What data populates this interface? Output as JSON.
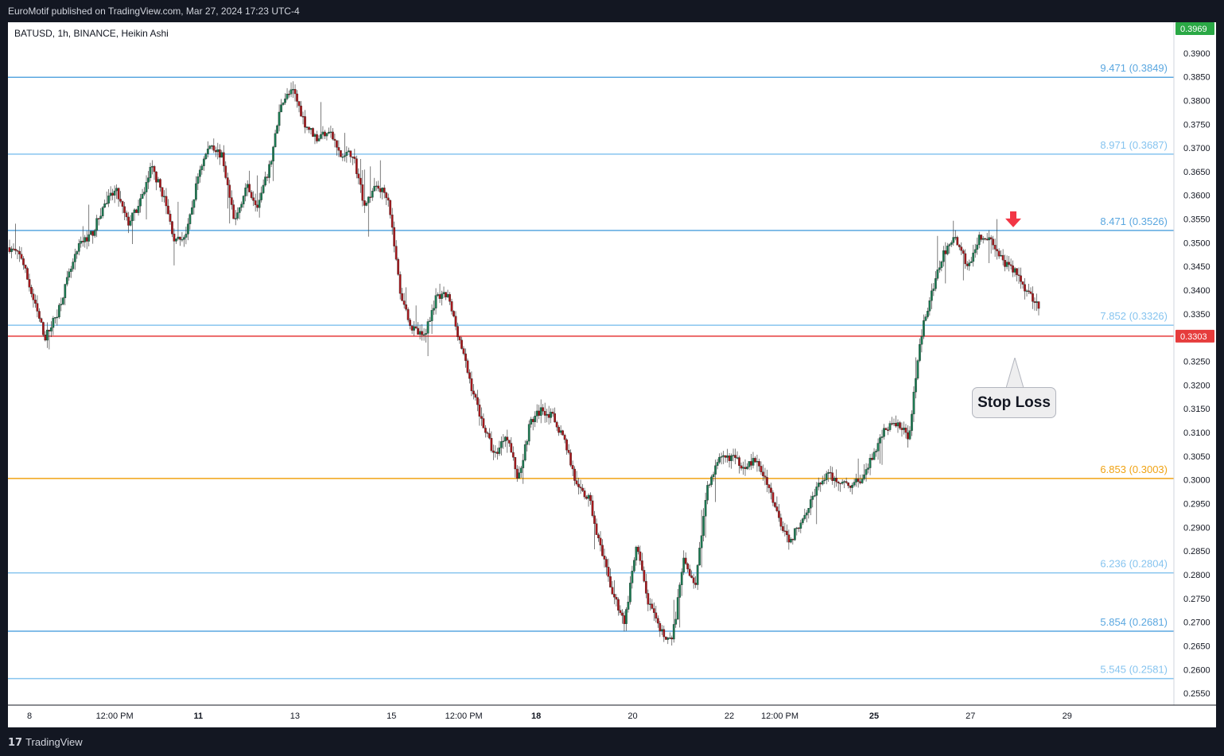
{
  "header": {
    "published": "EuroMotif published on TradingView.com, Mar 27, 2024 17:23 UTC-4"
  },
  "footer": {
    "brand": "TradingView",
    "logo_icon": "tradingview-logo-icon"
  },
  "colors": {
    "up": "#26a69a",
    "down": "#ef5350",
    "candle_up_body": "#1b7a52",
    "candle_down_body": "#a6171b",
    "fib_blue": "#5aa7e0",
    "fib_orange": "#f0a314",
    "stop": "#e63c3c",
    "last_price_bg": "#2aa845",
    "arrow": "#f23645"
  },
  "chart_data": {
    "type": "candlestick",
    "symbol_label": "BATUSD, 1h, BINANCE, Heikin Ashi",
    "ylim": [
      0.2525,
      0.3965
    ],
    "y_ticks": [
      "0.2550",
      "0.2600",
      "0.2650",
      "0.2700",
      "0.2750",
      "0.2800",
      "0.2850",
      "0.2900",
      "0.2950",
      "0.3000",
      "0.3050",
      "0.3100",
      "0.3150",
      "0.3200",
      "0.3250",
      "0.3300",
      "0.3350",
      "0.3400",
      "0.3450",
      "0.3500",
      "0.3550",
      "0.3600",
      "0.3650",
      "0.3700",
      "0.3750",
      "0.3800",
      "0.3850",
      "0.3900"
    ],
    "x_ticks": [
      {
        "label": "8",
        "bold": false,
        "t": 0.0
      },
      {
        "label": "12:00 PM",
        "bold": false,
        "t": 0.079
      },
      {
        "label": "11",
        "bold": true,
        "t": 0.1566
      },
      {
        "label": "13",
        "bold": false,
        "t": 0.2462
      },
      {
        "label": "15",
        "bold": false,
        "t": 0.3357
      },
      {
        "label": "12:00 PM",
        "bold": false,
        "t": 0.4028
      },
      {
        "label": "18",
        "bold": true,
        "t": 0.4699
      },
      {
        "label": "20",
        "bold": false,
        "t": 0.5594
      },
      {
        "label": "22",
        "bold": false,
        "t": 0.649
      },
      {
        "label": "12:00 PM",
        "bold": false,
        "t": 0.6958
      },
      {
        "label": "25",
        "bold": true,
        "t": 0.7832
      },
      {
        "label": "27",
        "bold": false,
        "t": 0.8726
      },
      {
        "label": "29",
        "bold": false,
        "t": 0.9622
      }
    ],
    "fib_levels": [
      {
        "label": "9.471 (0.3849)",
        "value": 0.3849,
        "color": "#5aa7e0"
      },
      {
        "label": "8.971 (0.3687)",
        "value": 0.3687,
        "color": "#86c4ef"
      },
      {
        "label": "8.471 (0.3526)",
        "value": 0.3526,
        "color": "#5aa7e0"
      },
      {
        "label": "7.852 (0.3326)",
        "value": 0.3326,
        "color": "#86c4ef"
      },
      {
        "label": "6.853 (0.3003)",
        "value": 0.3003,
        "color": "#f0a314"
      },
      {
        "label": "6.236 (0.2804)",
        "value": 0.2804,
        "color": "#86c4ef"
      },
      {
        "label": "5.854 (0.2681)",
        "value": 0.2681,
        "color": "#5aa7e0"
      },
      {
        "label": "5.545 (0.2581)",
        "value": 0.2581,
        "color": "#86c4ef"
      }
    ],
    "stop_line": {
      "value": 0.3303,
      "label": "0.3303",
      "color": "#e63c3c"
    },
    "last_price": {
      "value": 0.3969,
      "label": "0.3969"
    },
    "annotation": {
      "text": "Stop Loss"
    },
    "price_path": [
      0.349,
      0.347,
      0.338,
      0.33,
      0.335,
      0.343,
      0.35,
      0.352,
      0.358,
      0.361,
      0.354,
      0.358,
      0.366,
      0.36,
      0.35,
      0.352,
      0.365,
      0.371,
      0.368,
      0.354,
      0.362,
      0.358,
      0.366,
      0.38,
      0.382,
      0.375,
      0.372,
      0.374,
      0.368,
      0.369,
      0.358,
      0.362,
      0.36,
      0.34,
      0.332,
      0.33,
      0.338,
      0.339,
      0.33,
      0.32,
      0.312,
      0.305,
      0.31,
      0.3,
      0.312,
      0.315,
      0.313,
      0.308,
      0.298,
      0.296,
      0.285,
      0.276,
      0.27,
      0.286,
      0.274,
      0.268,
      0.266,
      0.283,
      0.278,
      0.299,
      0.304,
      0.305,
      0.303,
      0.304,
      0.3,
      0.292,
      0.287,
      0.292,
      0.297,
      0.301,
      0.3,
      0.299,
      0.3,
      0.305,
      0.311,
      0.312,
      0.309,
      0.33,
      0.34,
      0.348,
      0.351,
      0.345,
      0.351,
      0.351,
      0.346,
      0.344,
      0.34,
      0.337
    ]
  }
}
